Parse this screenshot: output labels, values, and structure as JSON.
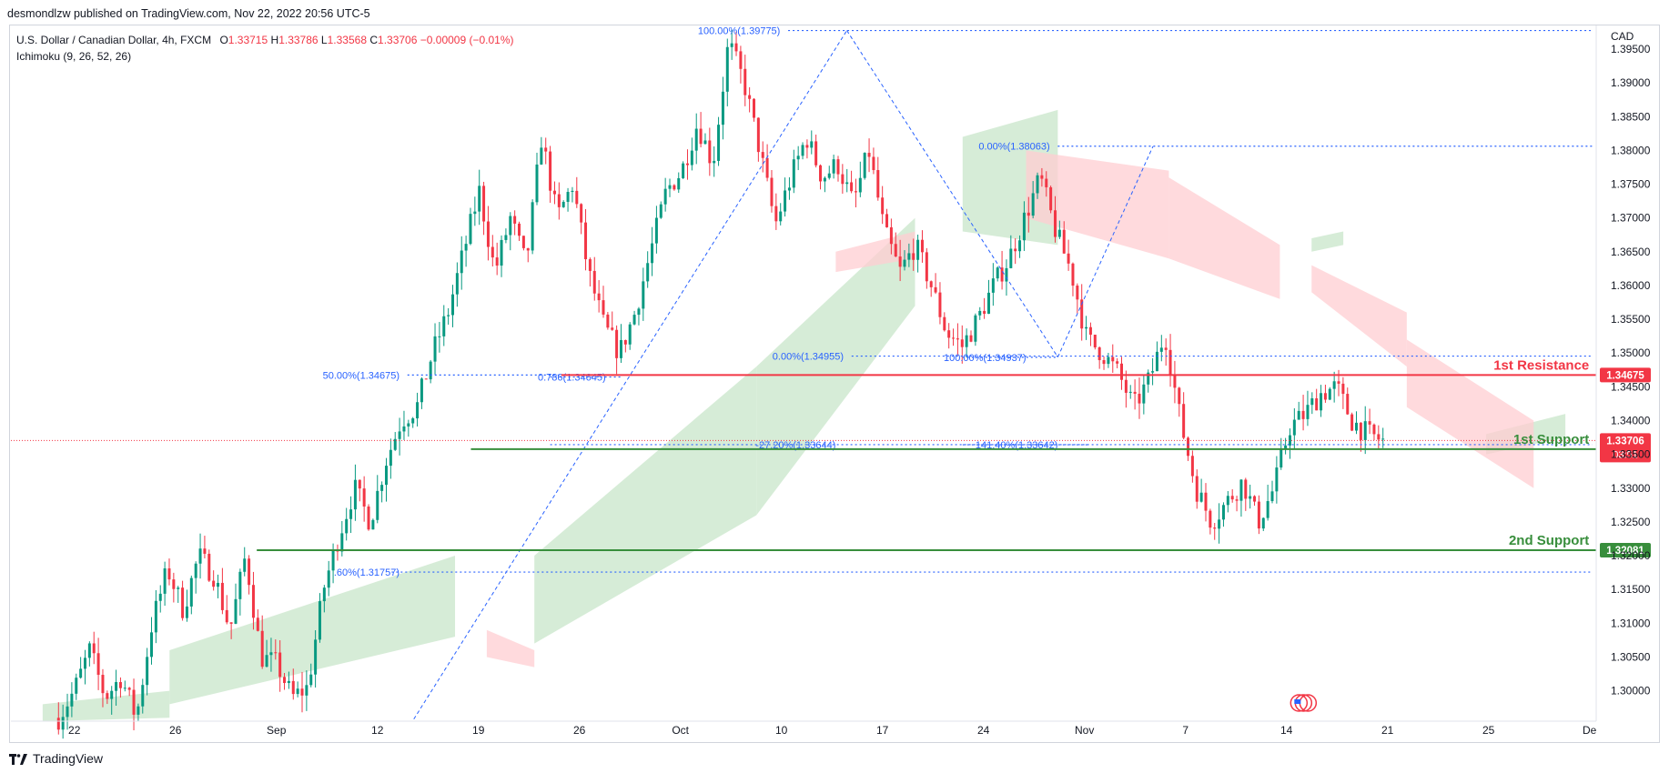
{
  "header": {
    "published": "desmondlzw published on TradingView.com, Nov 22, 2022 20:56 UTC-5",
    "symbol": "U.S. Dollar / Canadian Dollar, 4h, FXCM",
    "ohlc": {
      "o_label": "O",
      "o": "1.33715",
      "h_label": "H",
      "h": "1.33786",
      "l_label": "L",
      "l": "1.33568",
      "c_label": "C",
      "c": "1.33706",
      "change": "−0.00009 (−0.01%)"
    },
    "indicator": "Ichimoku (9, 26, 52, 26)"
  },
  "footer": {
    "brand": "TradingView"
  },
  "colors": {
    "up": "#089981",
    "down": "#f23645",
    "fib": "#2962ff",
    "resistance": "#f23645",
    "support": "#388e3c",
    "cloud_green": "#c8e6c9",
    "cloud_red": "#ffcdd2"
  },
  "chart_data": {
    "type": "candlestick",
    "currency": "CAD",
    "ylim": [
      1.2955,
      1.3985
    ],
    "y_ticks": [
      "1.39500",
      "1.39000",
      "1.38500",
      "1.38000",
      "1.37500",
      "1.37000",
      "1.36500",
      "1.36000",
      "1.35500",
      "1.35000",
      "1.34500",
      "1.34000",
      "1.33500",
      "1.33000",
      "1.32500",
      "1.32000",
      "1.31500",
      "1.31000",
      "1.30500",
      "1.30000"
    ],
    "x_ticks": [
      "22",
      "26",
      "Sep",
      "12",
      "19",
      "26",
      "Oct",
      "10",
      "17",
      "24",
      "Nov",
      "7",
      "14",
      "21",
      "25",
      "De"
    ],
    "price_path": [
      [
        1.296,
        1.3
      ],
      [
        1.306,
        1.299
      ],
      [
        1.302,
        1.296
      ],
      [
        1.31,
        1.318
      ],
      [
        1.312,
        1.32
      ],
      [
        1.317,
        1.309
      ],
      [
        1.32,
        1.305
      ],
      [
        1.304,
        1.299
      ],
      [
        1.3005,
        1.315
      ],
      [
        1.323,
        1.33
      ],
      [
        1.325,
        1.334
      ],
      [
        1.34,
        1.342
      ],
      [
        1.35,
        1.356
      ],
      [
        1.365,
        1.374
      ],
      [
        1.362,
        1.37
      ],
      [
        1.363,
        1.382
      ],
      [
        1.37,
        1.375
      ],
      [
        1.362,
        1.354
      ],
      [
        1.35,
        1.356
      ],
      [
        1.365,
        1.374
      ],
      [
        1.377,
        1.384
      ],
      [
        1.378,
        1.396
      ],
      [
        1.39,
        1.38
      ],
      [
        1.369,
        1.376
      ],
      [
        1.382,
        1.376
      ],
      [
        1.378,
        1.372
      ],
      [
        1.38,
        1.368
      ],
      [
        1.362,
        1.366
      ],
      [
        1.36,
        1.353
      ],
      [
        1.351,
        1.355
      ],
      [
        1.36,
        1.364
      ],
      [
        1.37,
        1.376
      ],
      [
        1.368,
        1.362
      ],
      [
        1.352,
        1.35
      ],
      [
        1.347,
        1.342
      ],
      [
        1.346,
        1.353
      ],
      [
        1.34,
        1.33
      ],
      [
        1.325,
        1.328
      ],
      [
        1.331,
        1.325
      ],
      [
        1.33,
        1.339
      ],
      [
        1.341,
        1.344
      ],
      [
        1.345,
        1.34
      ],
      [
        1.338,
        1.337
      ]
    ],
    "cloud": {
      "green_segments": [
        {
          "x": [
            0.02,
            0.1
          ],
          "top": [
            1.298,
            1.3
          ],
          "bottom": [
            1.2955,
            1.296
          ]
        },
        {
          "x": [
            0.1,
            0.28
          ],
          "top": [
            1.306,
            1.32
          ],
          "bottom": [
            1.298,
            1.308
          ]
        },
        {
          "x": [
            0.33,
            0.47
          ],
          "top": [
            1.32,
            1.348
          ],
          "bottom": [
            1.307,
            1.326
          ]
        },
        {
          "x": [
            0.47,
            0.57
          ],
          "top": [
            1.348,
            1.37
          ],
          "bottom": [
            1.326,
            1.357
          ]
        },
        {
          "x": [
            0.6,
            0.66
          ],
          "top": [
            1.382,
            1.386
          ],
          "bottom": [
            1.368,
            1.366
          ]
        },
        {
          "x": [
            0.82,
            0.84
          ],
          "top": [
            1.367,
            1.368
          ],
          "bottom": [
            1.365,
            1.366
          ]
        },
        {
          "x": [
            0.93,
            0.98
          ],
          "top": [
            1.338,
            1.341
          ],
          "bottom": [
            1.335,
            1.3375
          ]
        }
      ],
      "red_segments": [
        {
          "x": [
            0.3,
            0.33
          ],
          "top": [
            1.309,
            1.306
          ],
          "bottom": [
            1.305,
            1.3035
          ]
        },
        {
          "x": [
            0.52,
            0.57
          ],
          "top": [
            1.365,
            1.368
          ],
          "bottom": [
            1.362,
            1.364
          ]
        },
        {
          "x": [
            0.64,
            0.73
          ],
          "top": [
            1.38,
            1.377
          ],
          "bottom": [
            1.37,
            1.364
          ]
        },
        {
          "x": [
            0.73,
            0.8
          ],
          "top": [
            1.376,
            1.366
          ],
          "bottom": [
            1.364,
            1.358
          ]
        },
        {
          "x": [
            0.82,
            0.88
          ],
          "top": [
            1.363,
            1.356
          ],
          "bottom": [
            1.359,
            1.348
          ]
        },
        {
          "x": [
            0.88,
            0.96
          ],
          "top": [
            1.352,
            1.34
          ],
          "bottom": [
            1.342,
            1.33
          ]
        }
      ]
    },
    "fib_labels": [
      {
        "text": "100.00%(1.39775)",
        "price": 1.39775
      },
      {
        "text": "0.00%(1.38063)",
        "price": 1.38063
      },
      {
        "text": "50.00%(1.34675)",
        "price": 1.34675
      },
      {
        "text": "0.786(1.34645)",
        "price": 1.34645
      },
      {
        "text": "0.00%(1.34955)",
        "price": 1.34955
      },
      {
        "text": "100.00%(1.34937)",
        "price": 1.34937
      },
      {
        "text": "-27.20%(1.33644)",
        "price": 1.33644
      },
      {
        "text": "141.40%(1.33642)",
        "price": 1.33642
      },
      {
        "text": ".60%(1.31757)",
        "price": 1.31757
      }
    ],
    "levels": [
      {
        "name": "1st Resistance",
        "price": 1.34675,
        "price_label": "1.34675",
        "type": "resistance"
      },
      {
        "name": "1st Support",
        "price": 1.33578,
        "price_label": "1.33578",
        "type": "support"
      },
      {
        "name": "2nd Support",
        "price": 1.32081,
        "price_label": "1.32081",
        "type": "support"
      }
    ],
    "last_price": {
      "label": "1.33706",
      "price": 1.33706,
      "countdown": "03:51"
    }
  }
}
